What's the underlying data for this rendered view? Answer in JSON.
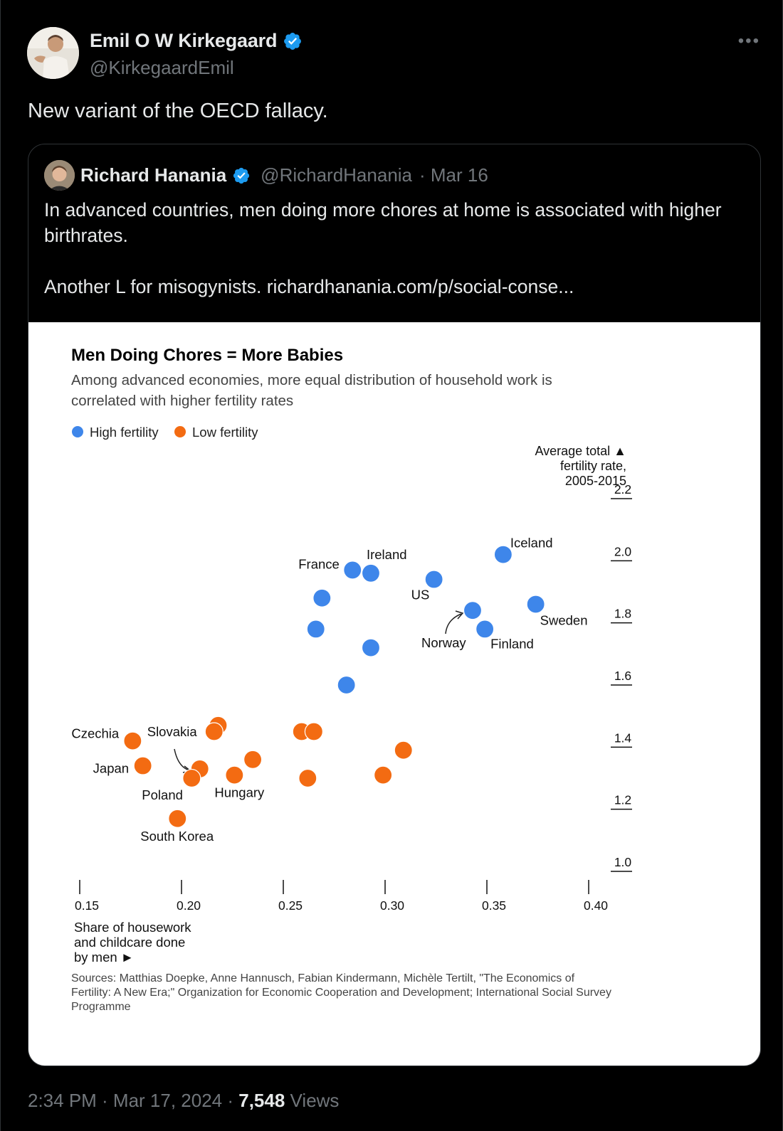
{
  "tweet": {
    "author_name": "Emil O W Kirkegaard",
    "author_handle": "@KirkegaardEmil",
    "more_label": "•••",
    "text": "New variant of the OECD fallacy.",
    "timestamp": "2:34 PM · Mar 17, 2024 · ",
    "views_count": "7,548",
    "views_label": " Views"
  },
  "quote": {
    "author_name": "Richard Hanania",
    "author_handle": "@RichardHanania",
    "date": "· Mar 16",
    "text_1": "In advanced countries, men doing more chores at home is associated with higher birthrates.",
    "text_2": "Another L for misogynists. richardhanania.com/p/social-conse..."
  },
  "colors": {
    "high": "#3e86ea",
    "low": "#f36b12",
    "verified": "#1d9bf0"
  },
  "chart_data": {
    "type": "scatter",
    "title": "Men Doing Chores = More Babies",
    "subtitle_1": "Among advanced economies, more equal distribution of household work is",
    "subtitle_2": "correlated with higher fertility rates",
    "legend": [
      {
        "name": "High fertility",
        "color": "#3e86ea"
      },
      {
        "name": "Low fertility",
        "color": "#f36b12"
      }
    ],
    "ylabel_1": "Average total ▲",
    "ylabel_2": "fertility rate,",
    "ylabel_3": "2005-2015",
    "xlabel_1": "Share of housework",
    "xlabel_2": "and childcare done",
    "xlabel_3": "by men ►",
    "xlim": [
      0.15,
      0.4
    ],
    "ylim": [
      1.0,
      2.2
    ],
    "xticks": [
      "0.15",
      "0.20",
      "0.25",
      "0.30",
      "0.35",
      "0.40"
    ],
    "yticks": [
      "1.0",
      "1.2",
      "1.4",
      "1.6",
      "1.8",
      "2.0",
      "2.2"
    ],
    "series": [
      {
        "name": "High fertility",
        "points": [
          {
            "x": 0.284,
            "y": 1.97,
            "label": "France"
          },
          {
            "x": 0.293,
            "y": 1.96,
            "label": "Ireland"
          },
          {
            "x": 0.324,
            "y": 1.94,
            "label": "US"
          },
          {
            "x": 0.358,
            "y": 2.02,
            "label": "Iceland"
          },
          {
            "x": 0.343,
            "y": 1.84,
            "label": "Norway"
          },
          {
            "x": 0.349,
            "y": 1.78,
            "label": "Finland"
          },
          {
            "x": 0.374,
            "y": 1.86,
            "label": "Sweden"
          },
          {
            "x": 0.269,
            "y": 1.88,
            "label": ""
          },
          {
            "x": 0.266,
            "y": 1.78,
            "label": ""
          },
          {
            "x": 0.293,
            "y": 1.72,
            "label": ""
          },
          {
            "x": 0.281,
            "y": 1.6,
            "label": ""
          }
        ]
      },
      {
        "name": "Low fertility",
        "points": [
          {
            "x": 0.176,
            "y": 1.42,
            "label": "Czechia"
          },
          {
            "x": 0.181,
            "y": 1.34,
            "label": "Japan"
          },
          {
            "x": 0.209,
            "y": 1.33,
            "label": "Slovakia"
          },
          {
            "x": 0.205,
            "y": 1.3,
            "label": "Poland"
          },
          {
            "x": 0.226,
            "y": 1.31,
            "label": "Hungary"
          },
          {
            "x": 0.198,
            "y": 1.17,
            "label": "South Korea"
          },
          {
            "x": 0.218,
            "y": 1.47,
            "label": ""
          },
          {
            "x": 0.216,
            "y": 1.45,
            "label": ""
          },
          {
            "x": 0.235,
            "y": 1.36,
            "label": ""
          },
          {
            "x": 0.259,
            "y": 1.45,
            "label": ""
          },
          {
            "x": 0.265,
            "y": 1.45,
            "label": ""
          },
          {
            "x": 0.262,
            "y": 1.3,
            "label": ""
          },
          {
            "x": 0.309,
            "y": 1.39,
            "label": ""
          },
          {
            "x": 0.299,
            "y": 1.31,
            "label": ""
          }
        ]
      }
    ],
    "sources_1": "Sources: Matthias Doepke, Anne Hannusch, Fabian Kindermann, Michèle Tertilt, \"The Economics of",
    "sources_2": "Fertility: A New Era;\" Organization for Economic Cooperation and Development; International Social Survey",
    "sources_3": "Programme"
  }
}
